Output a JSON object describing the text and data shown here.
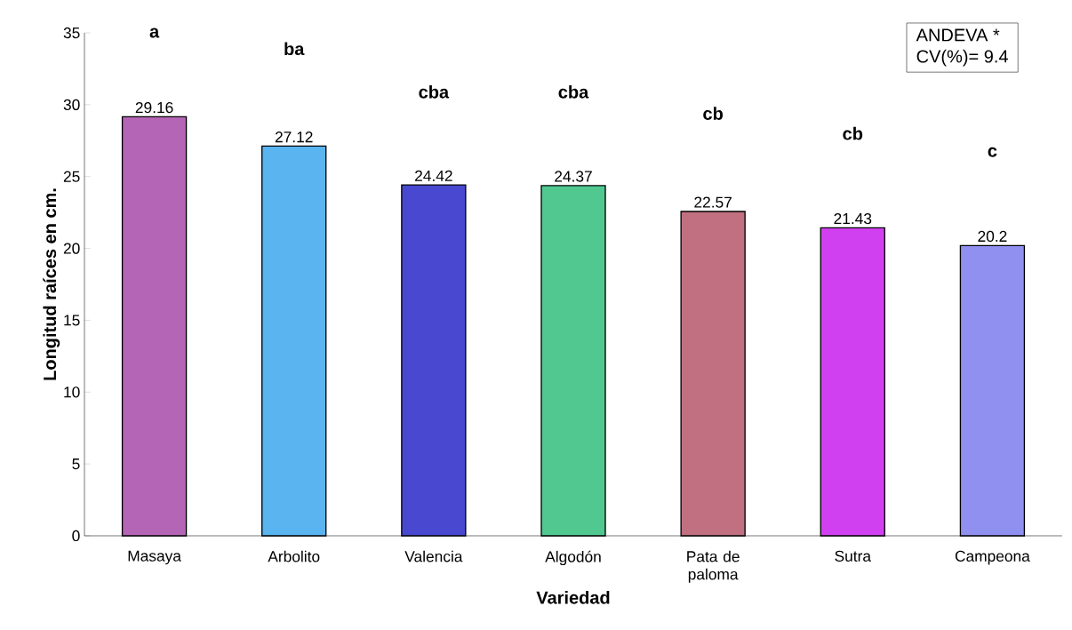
{
  "chart_data": {
    "type": "bar",
    "xlabel": "Variedad",
    "ylabel": "Longitud raíces en cm.",
    "categories": [
      "Masaya",
      "Arbolito",
      "Valencia",
      "Algodón",
      "Pata de paloma",
      "Sutra",
      "Campeona"
    ],
    "values": [
      29.16,
      27.12,
      24.42,
      24.37,
      22.57,
      21.43,
      20.2
    ],
    "value_labels": [
      "29.16",
      "27.12",
      "24.42",
      "24.37",
      "22.57",
      "21.43",
      "20.2"
    ],
    "colors": [
      "#b565b5",
      "#5ab4f0",
      "#4848d0",
      "#50c890",
      "#c07080",
      "#d040f0",
      "#9090f0"
    ],
    "ylim": [
      0,
      35
    ],
    "yticks": [
      0,
      5,
      10,
      15,
      20,
      25,
      30,
      35
    ],
    "annotations": [
      {
        "text": "a",
        "x": "Masaya",
        "y": 35
      },
      {
        "text": "ba",
        "x": "Arbolito",
        "y": 33.9
      },
      {
        "text": "cba",
        "x": "Valencia",
        "y": 30.9
      },
      {
        "text": "cba",
        "x": "Algodón",
        "y": 30.9
      },
      {
        "text": "cb",
        "x": "Pata de paloma",
        "y": 29.4
      },
      {
        "text": "cb",
        "x": "Sutra",
        "y": 28.0
      },
      {
        "text": "c",
        "x": "Campeona",
        "y": 26.7
      },
      "ANDEVA *",
      "CV(%)= 9.4"
    ]
  }
}
